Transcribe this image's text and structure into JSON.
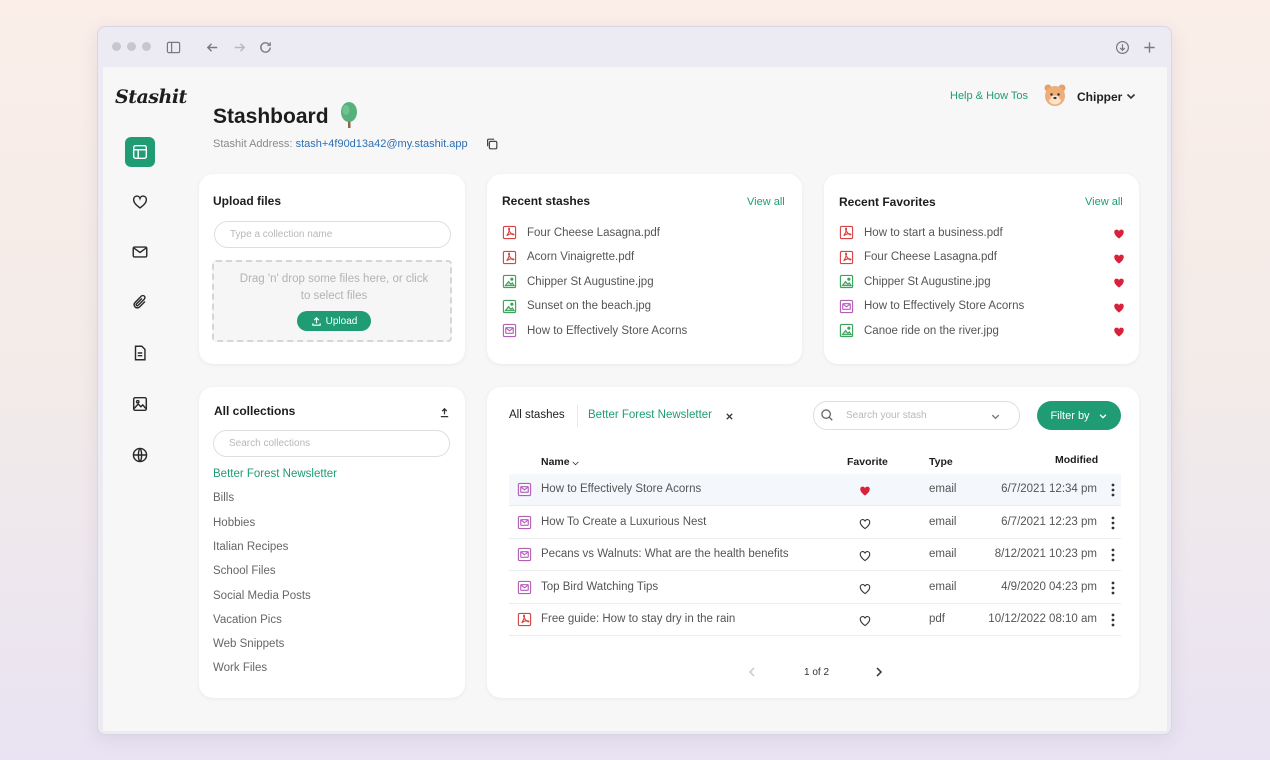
{
  "app": {
    "logo": "Stashit",
    "page_title": "Stashboard",
    "address_label": "Stashit Address:",
    "address_value": "stash+4f90d13a42@my.stashit.app",
    "help_link": "Help & How Tos",
    "user_name": "Chipper"
  },
  "rail": [
    "dashboard-icon",
    "heart-icon",
    "mail-icon",
    "paperclip-icon",
    "document-icon",
    "image-icon",
    "globe-icon"
  ],
  "upload": {
    "title": "Upload files",
    "collection_placeholder": "Type a collection name",
    "dropzone_text": "Drag 'n' drop some files here, or click to select files",
    "button_label": "Upload"
  },
  "recent_stashes": {
    "title": "Recent stashes",
    "view_all": "View all",
    "items": [
      {
        "name": "Four Cheese Lasagna.pdf",
        "kind": "pdf"
      },
      {
        "name": "Acorn Vinaigrette.pdf",
        "kind": "pdf"
      },
      {
        "name": "Chipper St Augustine.jpg",
        "kind": "image"
      },
      {
        "name": "Sunset on the beach.jpg",
        "kind": "image"
      },
      {
        "name": "How to Effectively Store Acorns",
        "kind": "email"
      }
    ]
  },
  "recent_favorites": {
    "title": "Recent Favorites",
    "view_all": "View all",
    "items": [
      {
        "name": "How to start a business.pdf",
        "kind": "pdf"
      },
      {
        "name": "Four Cheese Lasagna.pdf",
        "kind": "pdf"
      },
      {
        "name": "Chipper St Augustine.jpg",
        "kind": "image"
      },
      {
        "name": "How to Effectively Store Acorns",
        "kind": "email"
      },
      {
        "name": "Canoe ride on the river.jpg",
        "kind": "image"
      }
    ]
  },
  "collections": {
    "title": "All collections",
    "search_placeholder": "Search collections",
    "items": [
      "Better Forest Newsletter",
      "Bills",
      "Hobbies",
      "Italian Recipes",
      "School Files",
      "Social Media Posts",
      "Vacation Pics",
      "Web Snippets",
      "Work Files"
    ],
    "active_index": 0
  },
  "stashes_table": {
    "tab_all": "All stashes",
    "tab_filter": "Better Forest Newsletter",
    "search_placeholder": "Search your stash",
    "filter_label": "Filter by",
    "columns": {
      "name": "Name",
      "favorite": "Favorite",
      "type": "Type",
      "modified": "Modified"
    },
    "rows": [
      {
        "name": "How to Effectively Store Acorns",
        "favorite": true,
        "type": "email",
        "modified": "6/7/2021 12:34 pm"
      },
      {
        "name": "How To Create a Luxurious Nest",
        "favorite": false,
        "type": "email",
        "modified": "6/7/2021 12:23 pm"
      },
      {
        "name": "Pecans vs Walnuts: What are the health benefits",
        "favorite": false,
        "type": "email",
        "modified": "8/12/2021 10:23 pm"
      },
      {
        "name": "Top Bird Watching Tips",
        "favorite": false,
        "type": "email",
        "modified": "4/9/2020 04:23 pm"
      },
      {
        "name": "Free guide: How to stay dry in the rain",
        "favorite": false,
        "type": "pdf",
        "modified": "10/12/2022 08:10 am"
      }
    ],
    "pagination": "1 of 2"
  },
  "colors": {
    "accent": "#1f9c74",
    "heart": "#d9213b",
    "pdf": "#d64545",
    "image": "#3aa35c",
    "email": "#b35fb8"
  }
}
